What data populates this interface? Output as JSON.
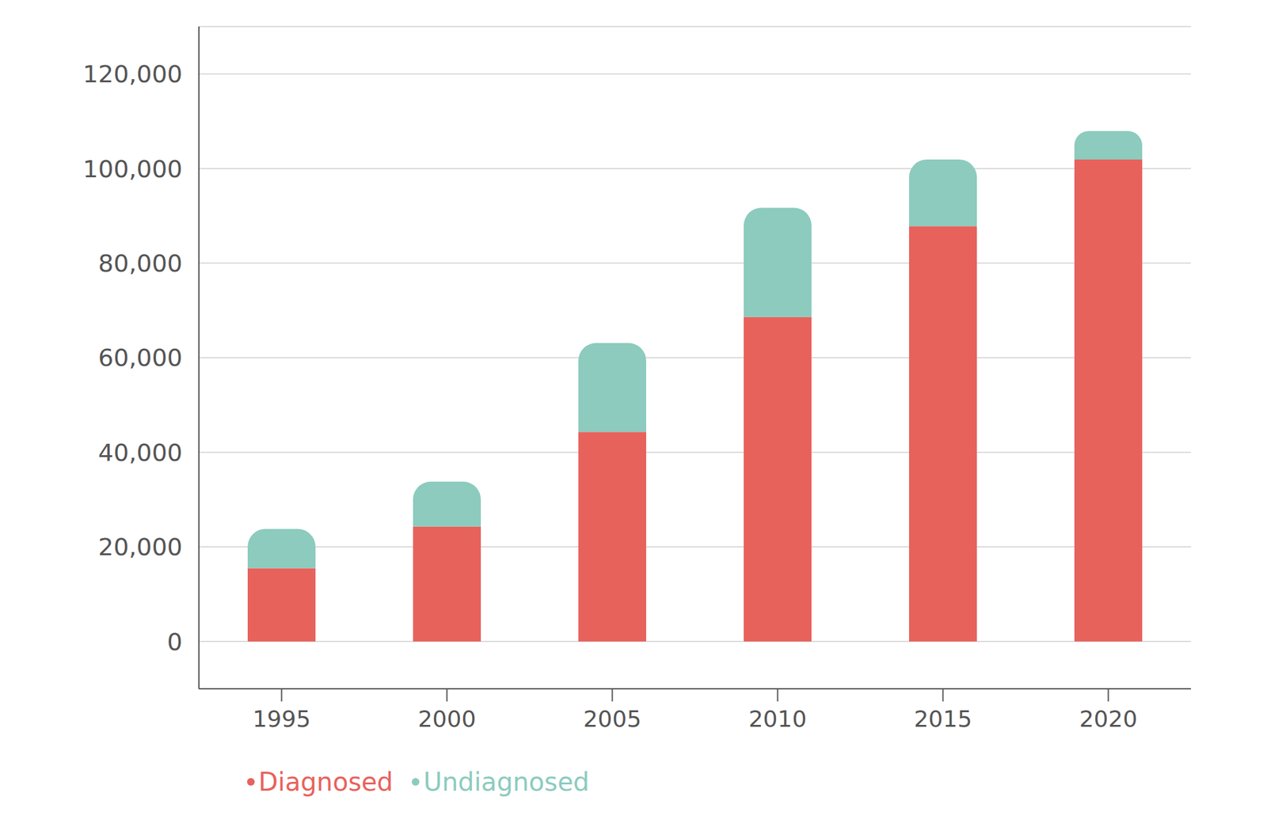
{
  "chart_data": {
    "type": "bar",
    "stacked": true,
    "grid": true,
    "legend": "bottom left",
    "categories": [
      "1995",
      "2000",
      "2005",
      "2010",
      "2015",
      "2020"
    ],
    "series": [
      {
        "name": "Diagnosed",
        "color": "#e8625c",
        "values": [
          15500,
          24300,
          44300,
          68600,
          87800,
          101900
        ]
      },
      {
        "name": "Undiagnosed",
        "color": "#8ccbbe",
        "values": [
          8300,
          9500,
          18800,
          23100,
          14100,
          6000
        ]
      }
    ],
    "ylim": [
      -10000,
      130000
    ],
    "yticks": [
      0,
      {
        "value": 20000,
        "label": "20,000"
      },
      {
        "value": 40000,
        "label": "40,000"
      },
      {
        "value": 60000,
        "label": "60,000"
      },
      {
        "value": 80000,
        "label": "80,000"
      },
      {
        "value": 100000,
        "label": "100,000"
      },
      {
        "value": 120000,
        "label": "120,000"
      }
    ]
  }
}
